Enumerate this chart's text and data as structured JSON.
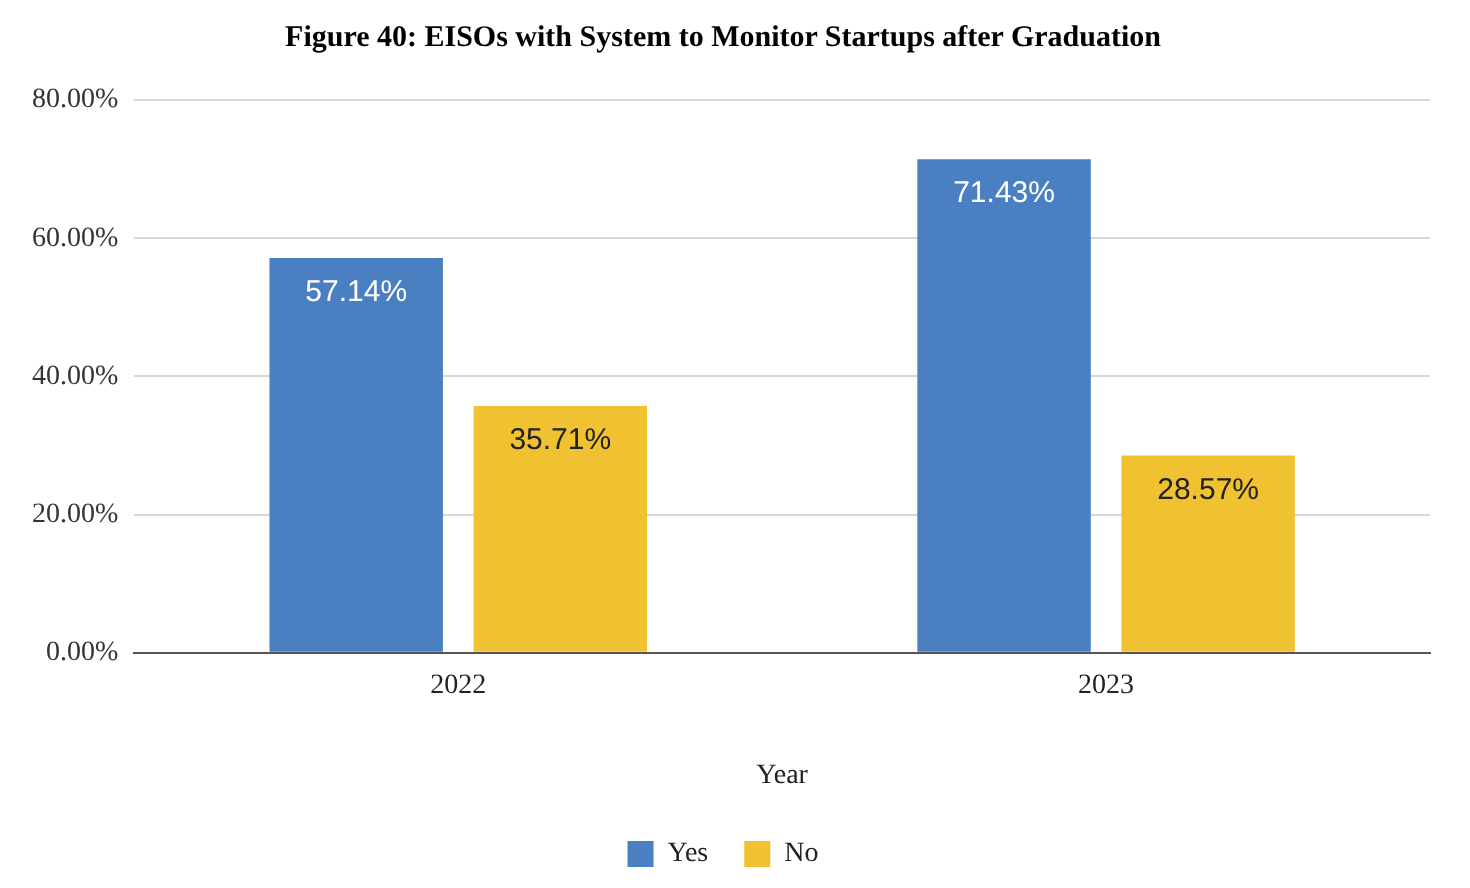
{
  "chart_data": {
    "type": "bar",
    "title": "Figure 40: EISOs with System to Monitor Startups after Graduation",
    "xlabel": "Year",
    "categories": [
      "2022",
      "2023"
    ],
    "series": [
      {
        "name": "Yes",
        "color": "#4a7fc1",
        "values": [
          57.14,
          71.43
        ],
        "value_labels": [
          "57.14%",
          "71.43%"
        ]
      },
      {
        "name": "No",
        "color": "#f0c232",
        "values": [
          35.71,
          28.57
        ],
        "value_labels": [
          "35.71%",
          "28.57%"
        ]
      }
    ],
    "ylim": [
      0,
      80
    ],
    "yticks": [
      {
        "value": 0,
        "label": "0.00%"
      },
      {
        "value": 20,
        "label": "20.00%"
      },
      {
        "value": 40,
        "label": "40.00%"
      },
      {
        "value": 60,
        "label": "60.00%"
      },
      {
        "value": 80,
        "label": "80.00%"
      }
    ],
    "grid": "y",
    "legend": "bottom"
  }
}
